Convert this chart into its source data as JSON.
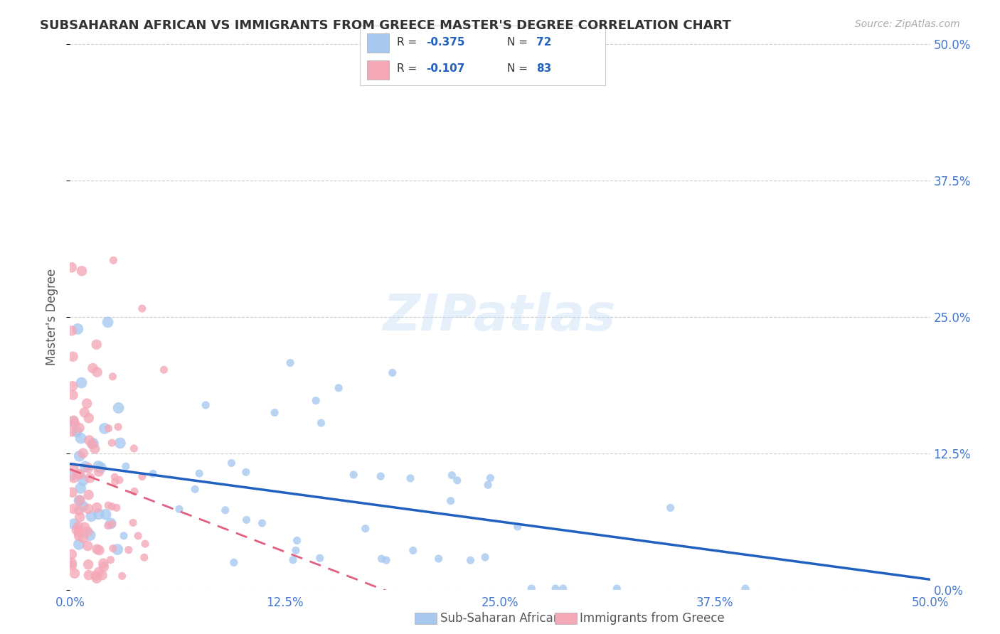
{
  "title": "SUBSAHARAN AFRICAN VS IMMIGRANTS FROM GREECE MASTER'S DEGREE CORRELATION CHART",
  "source": "Source: ZipAtlas.com",
  "ylabel": "Master's Degree",
  "ytick_labels": [
    "0.0%",
    "12.5%",
    "25.0%",
    "37.5%",
    "50.0%"
  ],
  "ytick_values": [
    0.0,
    0.125,
    0.25,
    0.375,
    0.5
  ],
  "xtick_labels": [
    "0.0%",
    "12.5%",
    "25.0%",
    "37.5%",
    "50.0%"
  ],
  "xtick_values": [
    0.0,
    0.125,
    0.25,
    0.375,
    0.5
  ],
  "xlim": [
    0.0,
    0.5
  ],
  "ylim": [
    0.0,
    0.5
  ],
  "blue_R": -0.375,
  "blue_N": 72,
  "pink_R": -0.107,
  "pink_N": 83,
  "blue_color": "#a8c8f0",
  "pink_color": "#f4a8b8",
  "blue_line_color": "#2060c0",
  "pink_line_color": "#e06080",
  "watermark": "ZIPatlas",
  "legend_label_blue": "Sub-Saharan Africans",
  "legend_label_pink": "Immigrants from Greece",
  "background_color": "#ffffff",
  "grid_color": "#cccccc",
  "title_color": "#333333",
  "axis_label_color": "#4477cc"
}
